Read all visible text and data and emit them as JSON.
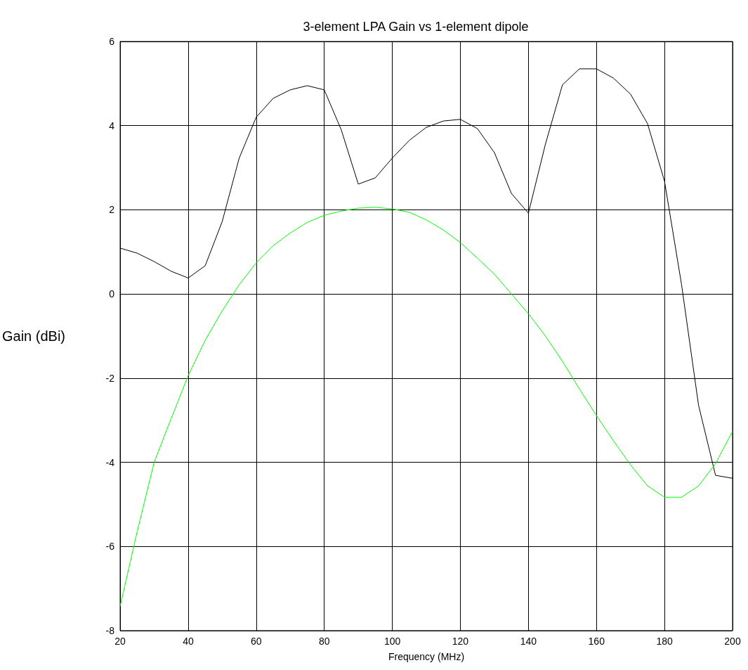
{
  "chart_data": {
    "type": "line",
    "title": "3-element LPA Gain vs 1-element dipole",
    "xlabel": "Frequency (MHz)",
    "ylabel": "Gain (dBi)",
    "x": [
      20,
      25,
      30,
      35,
      40,
      45,
      50,
      55,
      60,
      65,
      70,
      75,
      80,
      85,
      90,
      95,
      100,
      105,
      110,
      115,
      120,
      125,
      130,
      135,
      140,
      145,
      150,
      155,
      160,
      165,
      170,
      175,
      180,
      185,
      190,
      195,
      200
    ],
    "series": [
      {
        "color": "#000000",
        "values": [
          1.09,
          0.97,
          0.77,
          0.54,
          0.38,
          0.67,
          1.72,
          3.23,
          4.2,
          4.65,
          4.85,
          4.95,
          4.85,
          3.9,
          2.61,
          2.76,
          3.23,
          3.65,
          3.96,
          4.11,
          4.15,
          3.93,
          3.36,
          2.39,
          1.92,
          3.56,
          4.97,
          5.35,
          5.35,
          5.13,
          4.75,
          4.05,
          2.68,
          0.23,
          -2.64,
          -4.31,
          -4.38
        ]
      },
      {
        "color": "#00ff00",
        "values": [
          -7.42,
          -5.65,
          -4.0,
          -2.96,
          -1.94,
          -1.1,
          -0.4,
          0.22,
          0.74,
          1.15,
          1.45,
          1.7,
          1.87,
          1.97,
          2.04,
          2.06,
          2.02,
          1.94,
          1.76,
          1.52,
          1.22,
          0.85,
          0.47,
          0.0,
          -0.47,
          -1.0,
          -1.6,
          -2.26,
          -2.89,
          -3.49,
          -4.06,
          -4.56,
          -4.83,
          -4.83,
          -4.56,
          -4.03,
          -3.26
        ]
      }
    ],
    "xlim": [
      20,
      200
    ],
    "xticks": [
      20,
      40,
      60,
      80,
      100,
      120,
      140,
      160,
      180,
      200
    ],
    "ylim": [
      -8,
      6
    ],
    "yticks": [
      -8,
      -6,
      -4,
      -2,
      0,
      2,
      4,
      6
    ],
    "grid": true,
    "marker": "none",
    "line_style": "solid"
  }
}
